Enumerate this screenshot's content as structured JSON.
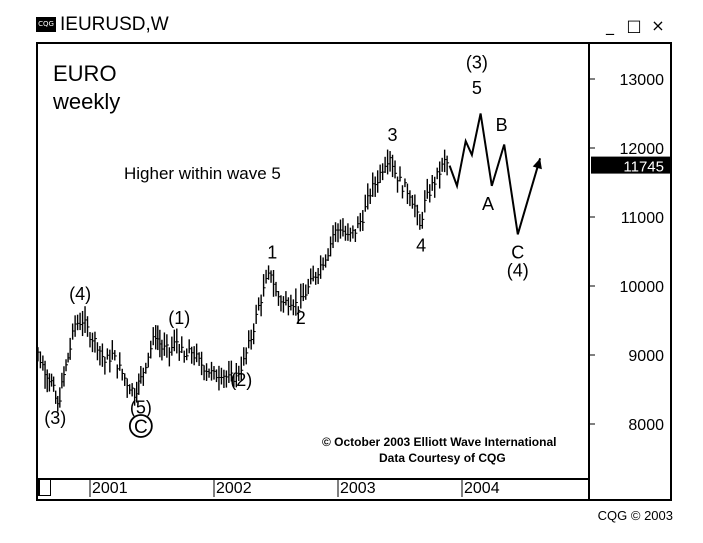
{
  "window": {
    "logo_text": "CQG",
    "title": "IEURUSD,W",
    "minimize": "_",
    "restore": "□",
    "close": "×"
  },
  "footer": {
    "credit": "CQG © 2003"
  },
  "chart_data": {
    "type": "candlestick",
    "title": "EURO",
    "subtitle": "weekly",
    "note": "Higher within wave 5",
    "copyright": "© October 2003 Elliott Wave International",
    "data_credit": "Data Courtesy of CQG",
    "last_price": {
      "label": "11745",
      "value": 11745
    },
    "x_ticks": [
      {
        "label": "2001",
        "t": 2001.0
      },
      {
        "label": "2002",
        "t": 2002.0
      },
      {
        "label": "2003",
        "t": 2003.0
      },
      {
        "label": "2004",
        "t": 2004.0
      }
    ],
    "y_ticks": [
      {
        "label": "13000",
        "v": 13000
      },
      {
        "label": "12000",
        "v": 12000
      },
      {
        "label": "11000",
        "v": 11000
      },
      {
        "label": "10000",
        "v": 10000
      },
      {
        "label": "9000",
        "v": 9000
      },
      {
        "label": "8000",
        "v": 8000
      }
    ],
    "price_path": [
      [
        2000.5,
        9250
      ],
      [
        2000.56,
        9100
      ],
      [
        2000.62,
        8850
      ],
      [
        2000.69,
        8600
      ],
      [
        2000.74,
        8250
      ],
      [
        2000.79,
        8700
      ],
      [
        2000.84,
        9100
      ],
      [
        2000.88,
        9450
      ],
      [
        2000.94,
        9500
      ],
      [
        2001.0,
        9300
      ],
      [
        2001.06,
        9150
      ],
      [
        2001.12,
        8900
      ],
      [
        2001.18,
        9000
      ],
      [
        2001.24,
        8800
      ],
      [
        2001.3,
        8600
      ],
      [
        2001.36,
        8450
      ],
      [
        2001.41,
        8650
      ],
      [
        2001.47,
        9000
      ],
      [
        2001.53,
        9300
      ],
      [
        2001.58,
        9100
      ],
      [
        2001.64,
        9050
      ],
      [
        2001.7,
        9200
      ],
      [
        2001.76,
        8950
      ],
      [
        2001.82,
        9050
      ],
      [
        2001.88,
        8900
      ],
      [
        2001.94,
        8800
      ],
      [
        2002.0,
        8700
      ],
      [
        2002.06,
        8750
      ],
      [
        2002.12,
        8650
      ],
      [
        2002.18,
        8700
      ],
      [
        2002.24,
        8900
      ],
      [
        2002.3,
        9250
      ],
      [
        2002.36,
        9700
      ],
      [
        2002.42,
        10050
      ],
      [
        2002.46,
        10200
      ],
      [
        2002.5,
        9900
      ],
      [
        2002.56,
        9750
      ],
      [
        2002.62,
        9800
      ],
      [
        2002.68,
        9700
      ],
      [
        2002.74,
        9900
      ],
      [
        2002.8,
        10100
      ],
      [
        2002.86,
        10300
      ],
      [
        2002.92,
        10500
      ],
      [
        2002.96,
        10750
      ],
      [
        2003.02,
        10850
      ],
      [
        2003.08,
        10700
      ],
      [
        2003.14,
        10800
      ],
      [
        2003.2,
        11000
      ],
      [
        2003.26,
        11350
      ],
      [
        2003.32,
        11550
      ],
      [
        2003.38,
        11800
      ],
      [
        2003.42,
        11900
      ],
      [
        2003.46,
        11650
      ],
      [
        2003.52,
        11450
      ],
      [
        2003.58,
        11350
      ],
      [
        2003.62,
        11150
      ],
      [
        2003.66,
        10850
      ],
      [
        2003.7,
        11200
      ],
      [
        2003.76,
        11450
      ],
      [
        2003.82,
        11650
      ],
      [
        2003.86,
        11800
      ],
      [
        2003.9,
        11750
      ]
    ],
    "projection_path": [
      [
        2003.9,
        11745
      ],
      [
        2003.96,
        11450
      ],
      [
        2004.03,
        12100
      ],
      [
        2004.08,
        11900
      ],
      [
        2004.15,
        12500
      ],
      [
        2004.24,
        11450
      ],
      [
        2004.34,
        12050
      ],
      [
        2004.45,
        10750
      ],
      [
        2004.63,
        11850
      ]
    ],
    "wave_labels": [
      {
        "text": "(3)",
        "t": 2000.72,
        "v": 8000
      },
      {
        "text": "(4)",
        "t": 2000.92,
        "v": 9800
      },
      {
        "text": "(5)",
        "t": 2001.41,
        "v": 8150
      },
      {
        "text": "C",
        "t": 2001.41,
        "v": 7870,
        "circled": true
      },
      {
        "text": "(1)",
        "t": 2001.72,
        "v": 9450
      },
      {
        "text": "(2)",
        "t": 2002.22,
        "v": 8550
      },
      {
        "text": "1",
        "t": 2002.47,
        "v": 10400
      },
      {
        "text": "2",
        "t": 2002.7,
        "v": 9450
      },
      {
        "text": "3",
        "t": 2003.44,
        "v": 12100
      },
      {
        "text": "4",
        "t": 2003.67,
        "v": 10500
      },
      {
        "text": "(3)",
        "t": 2004.12,
        "v": 13150
      },
      {
        "text": "5",
        "t": 2004.12,
        "v": 12780
      },
      {
        "text": "B",
        "t": 2004.32,
        "v": 12250
      },
      {
        "text": "A",
        "t": 2004.21,
        "v": 11100
      },
      {
        "text": "C",
        "t": 2004.45,
        "v": 10400
      },
      {
        "text": "(4)",
        "t": 2004.45,
        "v": 10140
      }
    ],
    "colors": {
      "line": "#000000",
      "background": "#ffffff",
      "price_box": "#000000"
    }
  }
}
